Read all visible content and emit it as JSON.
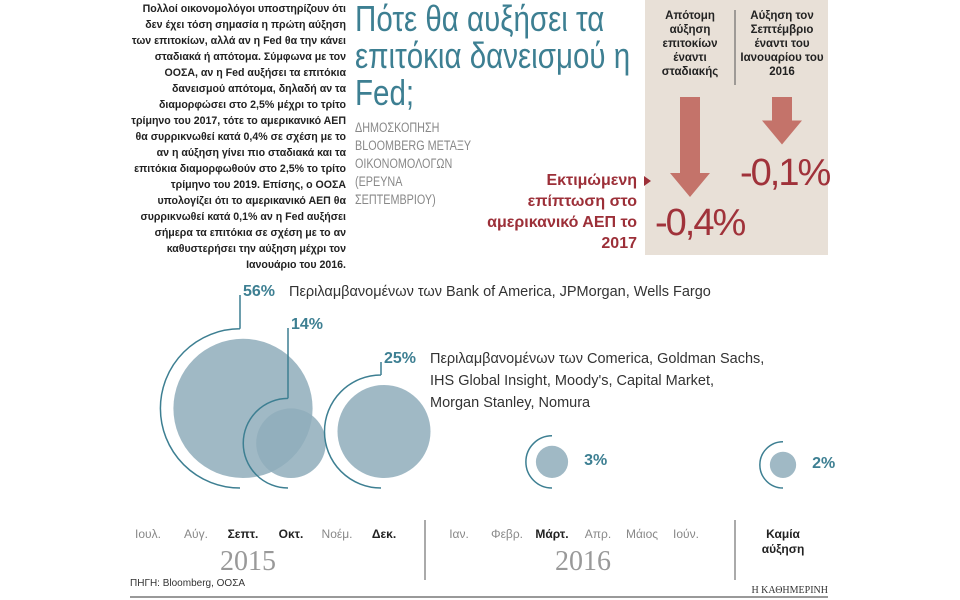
{
  "intro": "Πολλοί οικονομολόγοι υποστηρίζουν ότι δεν έχει τόση σημασία η πρώτη αύξηση των επιτοκίων, αλλά αν η Fed θα την κάνει σταδιακά ή απότομα. Σύμφωνα με τον ΟΟΣΑ, αν η Fed αυξήσει τα επιτόκια δανεισμού απότομα, δηλαδή αν τα διαμορφώσει στο 2,5% μέχρι το τρίτο τρίμηνο του 2017, τότε το αμερικανικό ΑΕΠ θα συρρικνωθεί κατά 0,4% σε σχέση με το αν η αύξηση γίνει πιο σταδιακά και τα επιτόκια διαμορφωθούν στο 2,5% το τρίτο τρίμηνο του 2019. Επίσης, ο ΟΟΣΑ υπολογίζει ότι το αμερικανικό ΑΕΠ θα συρρικνωθεί κατά 0,1% αν η Fed αυξήσει σήμερα τα επιτόκια σε σχέση με το αν καθυστερήσει την αύξηση μέχρι τον Ιανουάριο του 2016.",
  "impact": {
    "label": "Εκτιμώμενη επίπτωση στο αμερικανικό ΑΕΠ το 2017",
    "color": "#c4736a",
    "columns": [
      {
        "header": "Απότομη αύξηση επιτοκίων έναντι σταδιακής",
        "value": -0.4,
        "value_label": "-0,4%"
      },
      {
        "header": "Αύξηση τον Σεπτέμβριο έναντι του Ιανουαρίου του 2016",
        "value": -0.1,
        "value_label": "-0,1%"
      }
    ]
  },
  "chart_data": {
    "type": "bubble",
    "title": "Πότε θα αυξήσει τα επιτόκια δανεισμού η Fed;",
    "subtitle": "ΔΗΜΟΣΚΟΠΗΣΗ BLOOMBERG ΜΕΤΑΞΥ ΟΙΚΟΝΟΜΟΛΟΓΩΝ (ΕΡΕΥΝΑ ΣΕΠΤΕΜΒΡΙΟΥ)",
    "categories": [
      "Ιουλ.",
      "Αύγ.",
      "Σεπτ.",
      "Οκτ.",
      "Νοέμ.",
      "Δεκ.",
      "Ιαν.",
      "Φεβρ.",
      "Μάρτ.",
      "Απρ.",
      "Μάιος",
      "Ιούν.",
      "Καμία αύξηση"
    ],
    "values": [
      null,
      null,
      56,
      14,
      null,
      25,
      null,
      null,
      3,
      null,
      null,
      null,
      2
    ],
    "value_labels": [
      null,
      null,
      "56%",
      "14%",
      null,
      "25%",
      null,
      null,
      "3%",
      null,
      null,
      null,
      "2%"
    ],
    "notes": [
      [
        "Περιλαμβανομένων των Bank of America, JPMorgan, Wells Fargo"
      ],
      [
        "Περιλαμβανομένων των Comerica, Goldman Sachs,",
        "IHS Global Insight, Moody's, Capital Market,",
        "Morgan Stanley, Nomura"
      ]
    ],
    "years": [
      "2015",
      "2016"
    ],
    "color": "#8fadbb"
  },
  "source": "ΠΗΓΗ: Bloomberg, ΟΟΣΑ",
  "publisher": "Η ΚΑΘΗΜΕΡΙΝΗ"
}
